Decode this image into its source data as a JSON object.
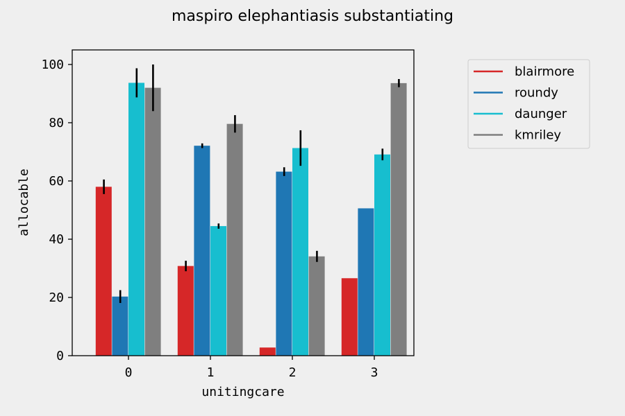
{
  "chart_data": {
    "type": "bar",
    "title": "maspiro elephantiasis substantiating",
    "xlabel": "unitingcare",
    "ylabel": "allocable",
    "categories": [
      "0",
      "1",
      "2",
      "3"
    ],
    "ylim": [
      0,
      105
    ],
    "yticks": [
      0,
      20,
      40,
      60,
      80,
      100
    ],
    "grid": false,
    "legend_position": "outside-top-right",
    "series": [
      {
        "name": "blairmore",
        "color": "#d62728",
        "values": [
          58.0,
          30.8,
          2.8,
          26.6
        ],
        "errors": [
          2.5,
          1.8,
          0.0,
          0.0
        ]
      },
      {
        "name": "roundy",
        "color": "#1f77b4",
        "values": [
          20.3,
          72.1,
          63.2,
          50.6
        ],
        "errors": [
          2.2,
          0.8,
          1.5,
          0.0
        ]
      },
      {
        "name": "daunger",
        "color": "#17becf",
        "values": [
          93.7,
          44.5,
          71.3,
          69.1
        ],
        "errors": [
          5.0,
          0.9,
          6.1,
          2.0
        ]
      },
      {
        "name": "kmriley",
        "color": "#7f7f7f",
        "values": [
          92.0,
          79.6,
          34.1,
          93.6
        ],
        "errors": [
          8.0,
          3.0,
          1.9,
          1.4
        ]
      }
    ]
  }
}
